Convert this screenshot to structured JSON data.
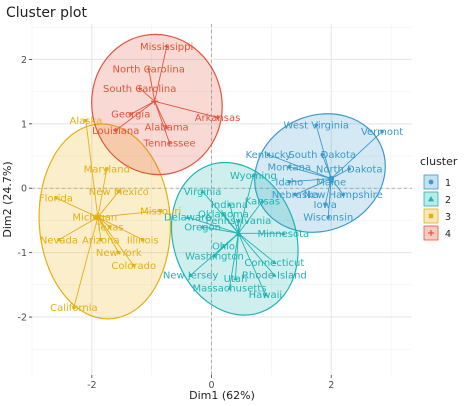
{
  "chart_data": {
    "type": "scatter",
    "title": "Cluster plot",
    "xlabel": "Dim1 (62%)",
    "ylabel": "Dim2 (24.7%)",
    "xlim": [
      -3.0,
      3.35
    ],
    "ylim": [
      -2.9,
      2.55
    ],
    "x_ticks": [
      -2,
      0,
      2
    ],
    "y_ticks": [
      -2,
      -1,
      0,
      1,
      2
    ],
    "grid": true,
    "legend": {
      "title": "cluster",
      "position": "right",
      "entries": [
        "1",
        "2",
        "3",
        "4"
      ]
    },
    "series": [
      {
        "name": "1",
        "color": "#3B9ACC",
        "marker": "circle",
        "centroid": [
          2.0,
          0.15
        ],
        "points": [
          {
            "label": "West Virginia",
            "x": 1.75,
            "y": 0.98
          },
          {
            "label": "Vermont",
            "x": 2.85,
            "y": 0.88
          },
          {
            "label": "Kentucky",
            "x": 0.95,
            "y": 0.52
          },
          {
            "label": "South Dakota",
            "x": 1.85,
            "y": 0.52
          },
          {
            "label": "Montana",
            "x": 1.3,
            "y": 0.33
          },
          {
            "label": "North Dakota",
            "x": 2.3,
            "y": 0.3
          },
          {
            "label": "Idaho",
            "x": 1.3,
            "y": 0.1
          },
          {
            "label": "Maine",
            "x": 2.0,
            "y": 0.1
          },
          {
            "label": "Nebraska",
            "x": 1.4,
            "y": -0.1
          },
          {
            "label": "New Hampshire",
            "x": 2.2,
            "y": -0.1
          },
          {
            "label": "Iowa",
            "x": 1.9,
            "y": -0.25
          },
          {
            "label": "Wisconsin",
            "x": 1.95,
            "y": -0.45
          }
        ]
      },
      {
        "name": "2",
        "color": "#1FB5B3",
        "marker": "triangle",
        "centroid": [
          0.45,
          -0.7
        ],
        "points": [
          {
            "label": "Wyoming",
            "x": 0.7,
            "y": 0.2
          },
          {
            "label": "Virginia",
            "x": -0.15,
            "y": -0.05
          },
          {
            "label": "Indiana",
            "x": 0.3,
            "y": -0.25
          },
          {
            "label": "Kansas",
            "x": 0.85,
            "y": -0.2
          },
          {
            "label": "Oklahoma",
            "x": 0.2,
            "y": -0.4
          },
          {
            "label": "Delaware",
            "x": -0.4,
            "y": -0.45
          },
          {
            "label": "Pennsylvania",
            "x": 0.45,
            "y": -0.5
          },
          {
            "label": "Oregon",
            "x": -0.15,
            "y": -0.6
          },
          {
            "label": "Minnesota",
            "x": 1.2,
            "y": -0.7
          },
          {
            "label": "Ohio",
            "x": 0.2,
            "y": -0.9
          },
          {
            "label": "Washington",
            "x": 0.05,
            "y": -1.05
          },
          {
            "label": "Connecticut",
            "x": 1.05,
            "y": -1.15
          },
          {
            "label": "New Jersey",
            "x": -0.35,
            "y": -1.35
          },
          {
            "label": "Utah",
            "x": 0.4,
            "y": -1.4
          },
          {
            "label": "Rhode Island",
            "x": 1.05,
            "y": -1.35
          },
          {
            "label": "Massachusetts",
            "x": 0.3,
            "y": -1.55
          },
          {
            "label": "Hawaii",
            "x": 0.9,
            "y": -1.65
          }
        ]
      },
      {
        "name": "3",
        "color": "#E6B012",
        "marker": "square",
        "centroid": [
          -1.9,
          -0.45
        ],
        "points": [
          {
            "label": "Alaska",
            "x": -2.1,
            "y": 1.05
          },
          {
            "label": "Maryland",
            "x": -1.75,
            "y": 0.3
          },
          {
            "label": "New Mexico",
            "x": -1.55,
            "y": -0.05
          },
          {
            "label": "Florida",
            "x": -2.6,
            "y": -0.15
          },
          {
            "label": "Missouri",
            "x": -0.85,
            "y": -0.35
          },
          {
            "label": "Michigan",
            "x": -1.95,
            "y": -0.45
          },
          {
            "label": "Texas",
            "x": -1.7,
            "y": -0.6
          },
          {
            "label": "Nevada",
            "x": -2.55,
            "y": -0.8
          },
          {
            "label": "Arizona",
            "x": -1.85,
            "y": -0.8
          },
          {
            "label": "Illinois",
            "x": -1.15,
            "y": -0.8
          },
          {
            "label": "New York",
            "x": -1.55,
            "y": -1.0
          },
          {
            "label": "Colorado",
            "x": -1.3,
            "y": -1.2
          },
          {
            "label": "California",
            "x": -2.3,
            "y": -1.85
          }
        ]
      },
      {
        "name": "4",
        "color": "#E5543C",
        "marker": "cross",
        "centroid": [
          -0.95,
          1.35
        ],
        "points": [
          {
            "label": "Mississippi",
            "x": -0.75,
            "y": 2.2
          },
          {
            "label": "North Carolina",
            "x": -1.05,
            "y": 1.85
          },
          {
            "label": "South Carolina",
            "x": -1.2,
            "y": 1.55
          },
          {
            "label": "Georgia",
            "x": -1.35,
            "y": 1.15
          },
          {
            "label": "Arkansas",
            "x": 0.1,
            "y": 1.1
          },
          {
            "label": "Alabama",
            "x": -0.75,
            "y": 0.95
          },
          {
            "label": "Louisiana",
            "x": -1.6,
            "y": 0.9
          },
          {
            "label": "Tennessee",
            "x": -0.7,
            "y": 0.7
          }
        ]
      }
    ]
  }
}
